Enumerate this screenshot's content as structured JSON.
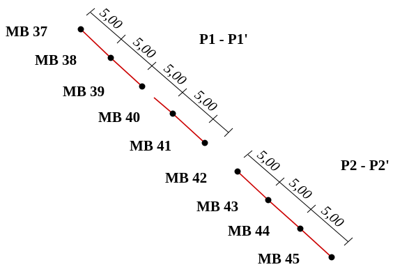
{
  "profiles": [
    {
      "name": "P1 - P1'",
      "points": [
        "MB 37",
        "MB 38",
        "MB 39",
        "MB 40",
        "MB 41"
      ],
      "spacings": [
        "5,00",
        "5,00",
        "5,00",
        "5,00"
      ]
    },
    {
      "name": "P2 - P2'",
      "points": [
        "MB 42",
        "MB 43",
        "MB 44",
        "MB 45"
      ],
      "spacings": [
        "5,00",
        "5,00",
        "5,00"
      ]
    }
  ],
  "colors": {
    "line": "#cc0000",
    "point": "#000000",
    "dimension": "#000000"
  }
}
